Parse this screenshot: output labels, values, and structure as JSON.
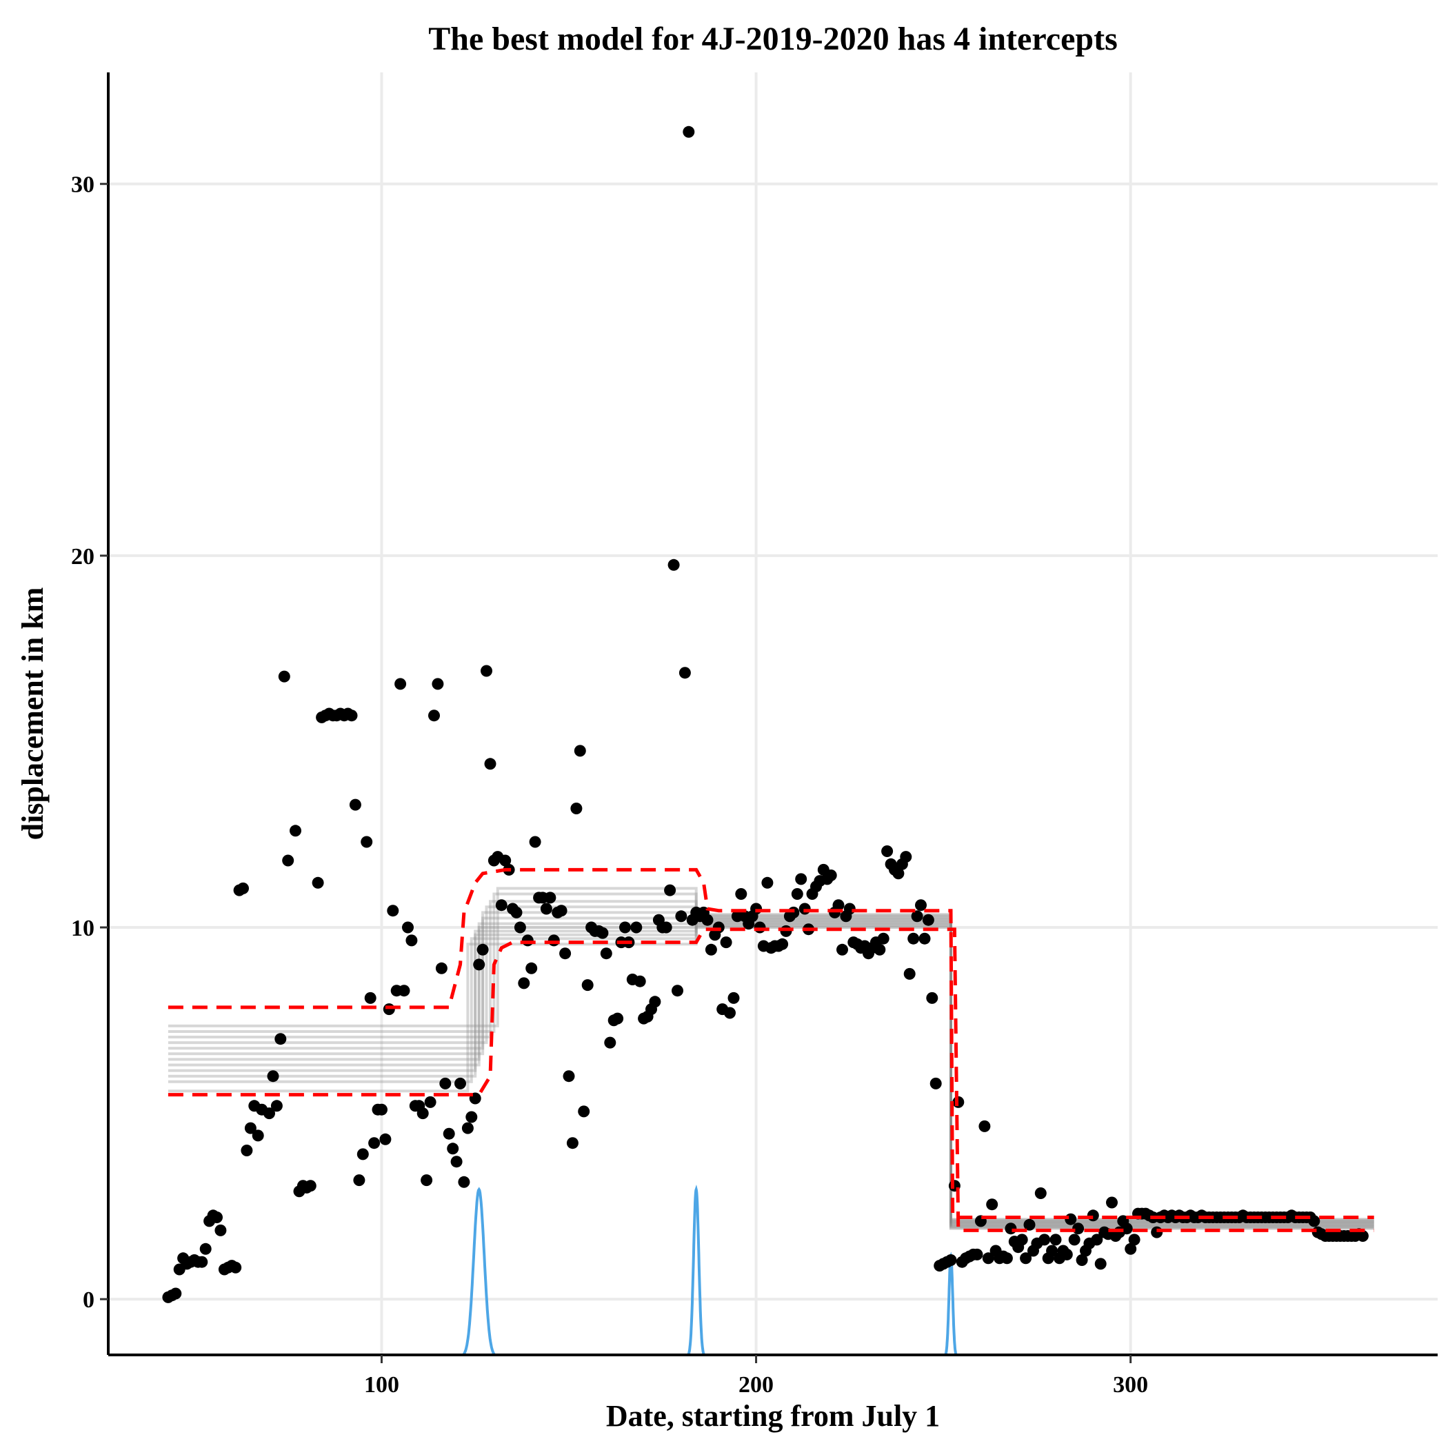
{
  "chart_data": {
    "type": "scatter",
    "title": "The best model for 4J-2019-2020 has 4 intercepts",
    "xlabel": "Date, starting from July 1",
    "ylabel": "displacement in km",
    "xlim": [
      27,
      382
    ],
    "ylim": [
      -1.5,
      33.0
    ],
    "x_ticks": [
      100,
      200,
      300
    ],
    "y_ticks": [
      0,
      10,
      20,
      30
    ],
    "x_tick_labels": [
      "100",
      "200",
      "300"
    ],
    "y_tick_labels": [
      "0",
      "10",
      "20",
      "30"
    ],
    "grid": true,
    "legend": "none",
    "colors": {
      "points": "#000000",
      "ci_band": "#ff0000",
      "posterior_lines": "#8c8c8c",
      "changepoint_density": "#4da6e6"
    },
    "points": [
      [
        43,
        0.05
      ],
      [
        44,
        0.1
      ],
      [
        45,
        0.15
      ],
      [
        46,
        0.8
      ],
      [
        47,
        1.1
      ],
      [
        48,
        0.95
      ],
      [
        49,
        1.0
      ],
      [
        50,
        1.05
      ],
      [
        51,
        1.0
      ],
      [
        52,
        1.0
      ],
      [
        53,
        1.35
      ],
      [
        54,
        2.1
      ],
      [
        55,
        2.25
      ],
      [
        56,
        2.2
      ],
      [
        57,
        1.85
      ],
      [
        58,
        0.8
      ],
      [
        59,
        0.85
      ],
      [
        60,
        0.9
      ],
      [
        61,
        0.85
      ],
      [
        62,
        11.0
      ],
      [
        63,
        11.05
      ],
      [
        64,
        4.0
      ],
      [
        65,
        4.6
      ],
      [
        66,
        5.2
      ],
      [
        67,
        4.4
      ],
      [
        68,
        5.1
      ],
      [
        70,
        5.0
      ],
      [
        71,
        6.0
      ],
      [
        72,
        5.2
      ],
      [
        73,
        7.0
      ],
      [
        74,
        16.75
      ],
      [
        75,
        11.8
      ],
      [
        77,
        12.6
      ],
      [
        78,
        2.9
      ],
      [
        79,
        3.05
      ],
      [
        80,
        3.0
      ],
      [
        81,
        3.05
      ],
      [
        83,
        11.2
      ],
      [
        84,
        15.65
      ],
      [
        85,
        15.7
      ],
      [
        86,
        15.75
      ],
      [
        87,
        15.7
      ],
      [
        88,
        15.7
      ],
      [
        89,
        15.75
      ],
      [
        90,
        15.7
      ],
      [
        91,
        15.75
      ],
      [
        92,
        15.7
      ],
      [
        93,
        13.3
      ],
      [
        94,
        3.2
      ],
      [
        95,
        3.9
      ],
      [
        96,
        12.3
      ],
      [
        97,
        8.1
      ],
      [
        98,
        4.2
      ],
      [
        99,
        5.1
      ],
      [
        100,
        5.1
      ],
      [
        101,
        4.3
      ],
      [
        102,
        7.8
      ],
      [
        103,
        10.45
      ],
      [
        104,
        8.3
      ],
      [
        105,
        16.55
      ],
      [
        106,
        8.3
      ],
      [
        107,
        10.0
      ],
      [
        108,
        9.65
      ],
      [
        109,
        5.2
      ],
      [
        110,
        5.2
      ],
      [
        111,
        5.0
      ],
      [
        112,
        3.2
      ],
      [
        113,
        5.3
      ],
      [
        114,
        15.7
      ],
      [
        115,
        16.55
      ],
      [
        116,
        8.9
      ],
      [
        117,
        5.8
      ],
      [
        118,
        4.45
      ],
      [
        119,
        4.05
      ],
      [
        120,
        3.7
      ],
      [
        121,
        5.8
      ],
      [
        122,
        3.15
      ],
      [
        123,
        4.6
      ],
      [
        124,
        4.9
      ],
      [
        125,
        5.4
      ],
      [
        126,
        9.0
      ],
      [
        127,
        9.4
      ],
      [
        128,
        16.9
      ],
      [
        129,
        14.4
      ],
      [
        130,
        11.8
      ],
      [
        131,
        11.9
      ],
      [
        132,
        10.6
      ],
      [
        133,
        11.8
      ],
      [
        134,
        11.55
      ],
      [
        135,
        10.5
      ],
      [
        136,
        10.4
      ],
      [
        137,
        10.0
      ],
      [
        138,
        8.5
      ],
      [
        139,
        9.65
      ],
      [
        140,
        8.9
      ],
      [
        141,
        12.3
      ],
      [
        142,
        10.8
      ],
      [
        143,
        10.8
      ],
      [
        144,
        10.5
      ],
      [
        145,
        10.8
      ],
      [
        146,
        9.65
      ],
      [
        147,
        10.4
      ],
      [
        148,
        10.45
      ],
      [
        149,
        9.3
      ],
      [
        150,
        6.0
      ],
      [
        151,
        4.2
      ],
      [
        152,
        13.2
      ],
      [
        153,
        14.75
      ],
      [
        154,
        5.05
      ],
      [
        155,
        8.45
      ],
      [
        156,
        10.0
      ],
      [
        157,
        9.9
      ],
      [
        158,
        9.9
      ],
      [
        159,
        9.85
      ],
      [
        160,
        9.3
      ],
      [
        161,
        6.9
      ],
      [
        162,
        7.5
      ],
      [
        163,
        7.55
      ],
      [
        164,
        9.6
      ],
      [
        165,
        10.0
      ],
      [
        166,
        9.6
      ],
      [
        167,
        8.6
      ],
      [
        168,
        10.0
      ],
      [
        169,
        8.55
      ],
      [
        170,
        7.55
      ],
      [
        171,
        7.6
      ],
      [
        172,
        7.8
      ],
      [
        173,
        8.0
      ],
      [
        174,
        10.2
      ],
      [
        175,
        10.0
      ],
      [
        176,
        10.0
      ],
      [
        177,
        11.0
      ],
      [
        178,
        19.75
      ],
      [
        179,
        8.3
      ],
      [
        180,
        10.3
      ],
      [
        181,
        16.85
      ],
      [
        182,
        31.4
      ],
      [
        183,
        10.2
      ],
      [
        184,
        10.4
      ],
      [
        185,
        10.3
      ],
      [
        186,
        10.4
      ],
      [
        187,
        10.2
      ],
      [
        188,
        9.4
      ],
      [
        189,
        9.8
      ],
      [
        190,
        10.0
      ],
      [
        191,
        7.8
      ],
      [
        192,
        9.6
      ],
      [
        193,
        7.7
      ],
      [
        194,
        8.1
      ],
      [
        195,
        10.3
      ],
      [
        196,
        10.9
      ],
      [
        197,
        10.3
      ],
      [
        198,
        10.1
      ],
      [
        199,
        10.3
      ],
      [
        200,
        10.5
      ],
      [
        201,
        10.0
      ],
      [
        202,
        9.5
      ],
      [
        203,
        11.2
      ],
      [
        204,
        9.45
      ],
      [
        205,
        9.5
      ],
      [
        206,
        9.5
      ],
      [
        207,
        9.55
      ],
      [
        208,
        9.9
      ],
      [
        209,
        10.3
      ],
      [
        210,
        10.4
      ],
      [
        211,
        10.9
      ],
      [
        212,
        11.3
      ],
      [
        213,
        10.5
      ],
      [
        214,
        9.95
      ],
      [
        215,
        10.9
      ],
      [
        216,
        11.1
      ],
      [
        217,
        11.25
      ],
      [
        218,
        11.55
      ],
      [
        219,
        11.3
      ],
      [
        220,
        11.4
      ],
      [
        221,
        10.4
      ],
      [
        222,
        10.6
      ],
      [
        223,
        9.4
      ],
      [
        224,
        10.3
      ],
      [
        225,
        10.5
      ],
      [
        226,
        9.6
      ],
      [
        227,
        9.55
      ],
      [
        228,
        9.45
      ],
      [
        229,
        9.5
      ],
      [
        230,
        9.3
      ],
      [
        231,
        9.45
      ],
      [
        232,
        9.6
      ],
      [
        233,
        9.4
      ],
      [
        234,
        9.7
      ],
      [
        235,
        12.05
      ],
      [
        236,
        11.7
      ],
      [
        237,
        11.55
      ],
      [
        238,
        11.45
      ],
      [
        239,
        11.7
      ],
      [
        240,
        11.9
      ],
      [
        241,
        8.75
      ],
      [
        242,
        9.7
      ],
      [
        243,
        10.3
      ],
      [
        244,
        10.6
      ],
      [
        245,
        9.7
      ],
      [
        246,
        10.2
      ],
      [
        247,
        8.1
      ],
      [
        248,
        5.8
      ],
      [
        249,
        0.9
      ],
      [
        250,
        0.95
      ],
      [
        251,
        1.0
      ],
      [
        252,
        1.05
      ],
      [
        253,
        3.05
      ],
      [
        254,
        5.3
      ],
      [
        255,
        1.0
      ],
      [
        256,
        1.1
      ],
      [
        257,
        1.15
      ],
      [
        258,
        1.2
      ],
      [
        259,
        1.2
      ],
      [
        260,
        2.1
      ],
      [
        261,
        4.65
      ],
      [
        262,
        1.1
      ],
      [
        263,
        2.55
      ],
      [
        264,
        1.3
      ],
      [
        265,
        1.1
      ],
      [
        266,
        1.15
      ],
      [
        267,
        1.1
      ],
      [
        268,
        1.9
      ],
      [
        269,
        1.55
      ],
      [
        270,
        1.4
      ],
      [
        271,
        1.6
      ],
      [
        272,
        1.1
      ],
      [
        273,
        2.0
      ],
      [
        274,
        1.3
      ],
      [
        275,
        1.5
      ],
      [
        276,
        2.85
      ],
      [
        277,
        1.6
      ],
      [
        278,
        1.1
      ],
      [
        279,
        1.3
      ],
      [
        280,
        1.6
      ],
      [
        281,
        1.1
      ],
      [
        282,
        1.3
      ],
      [
        283,
        1.2
      ],
      [
        284,
        2.15
      ],
      [
        285,
        1.6
      ],
      [
        286,
        1.9
      ],
      [
        287,
        1.05
      ],
      [
        288,
        1.3
      ],
      [
        289,
        1.5
      ],
      [
        290,
        2.25
      ],
      [
        291,
        1.6
      ],
      [
        292,
        0.95
      ],
      [
        293,
        1.8
      ],
      [
        294,
        1.75
      ],
      [
        295,
        2.6
      ],
      [
        296,
        1.7
      ],
      [
        297,
        1.8
      ],
      [
        298,
        2.1
      ],
      [
        299,
        1.9
      ],
      [
        300,
        1.35
      ],
      [
        301,
        1.6
      ],
      [
        302,
        2.3
      ],
      [
        303,
        2.3
      ],
      [
        304,
        2.3
      ],
      [
        305,
        2.25
      ],
      [
        306,
        2.2
      ],
      [
        307,
        1.8
      ],
      [
        308,
        2.2
      ],
      [
        309,
        2.25
      ],
      [
        310,
        2.2
      ],
      [
        311,
        2.25
      ],
      [
        312,
        2.2
      ],
      [
        313,
        2.25
      ],
      [
        314,
        2.2
      ],
      [
        315,
        2.2
      ],
      [
        316,
        2.25
      ],
      [
        317,
        2.2
      ],
      [
        318,
        2.2
      ],
      [
        319,
        2.25
      ],
      [
        320,
        2.2
      ],
      [
        321,
        2.2
      ],
      [
        322,
        2.2
      ],
      [
        323,
        2.2
      ],
      [
        324,
        2.2
      ],
      [
        325,
        2.2
      ],
      [
        326,
        2.2
      ],
      [
        327,
        2.2
      ],
      [
        328,
        2.2
      ],
      [
        329,
        2.2
      ],
      [
        330,
        2.25
      ],
      [
        331,
        2.2
      ],
      [
        332,
        2.2
      ],
      [
        333,
        2.2
      ],
      [
        334,
        2.2
      ],
      [
        335,
        2.2
      ],
      [
        336,
        2.2
      ],
      [
        337,
        2.2
      ],
      [
        338,
        2.2
      ],
      [
        339,
        2.2
      ],
      [
        340,
        2.2
      ],
      [
        341,
        2.2
      ],
      [
        342,
        2.2
      ],
      [
        343,
        2.25
      ],
      [
        344,
        2.2
      ],
      [
        345,
        2.2
      ],
      [
        346,
        2.2
      ],
      [
        347,
        2.2
      ],
      [
        348,
        2.2
      ],
      [
        349,
        2.1
      ],
      [
        350,
        1.8
      ],
      [
        351,
        1.75
      ],
      [
        352,
        1.7
      ],
      [
        353,
        1.7
      ],
      [
        354,
        1.7
      ],
      [
        355,
        1.7
      ],
      [
        356,
        1.7
      ],
      [
        357,
        1.7
      ],
      [
        358,
        1.7
      ],
      [
        359,
        1.7
      ],
      [
        360,
        1.7
      ],
      [
        361,
        1.75
      ],
      [
        362,
        1.7
      ]
    ],
    "ci_upper": [
      [
        43,
        7.85
      ],
      [
        118,
        7.85
      ],
      [
        121,
        9.0
      ],
      [
        122,
        10.4
      ],
      [
        125,
        11.2
      ],
      [
        127,
        11.45
      ],
      [
        133,
        11.55
      ],
      [
        184,
        11.55
      ],
      [
        186,
        11.2
      ],
      [
        187,
        10.5
      ],
      [
        190,
        10.45
      ],
      [
        252,
        10.45
      ],
      [
        252.5,
        2.2
      ],
      [
        365,
        2.2
      ]
    ],
    "ci_lower": [
      [
        43,
        5.5
      ],
      [
        126,
        5.5
      ],
      [
        129,
        6.0
      ],
      [
        130,
        9.0
      ],
      [
        132,
        9.45
      ],
      [
        135,
        9.6
      ],
      [
        184,
        9.6
      ],
      [
        186,
        9.95
      ],
      [
        187,
        9.95
      ],
      [
        253,
        9.95
      ],
      [
        254,
        1.85
      ],
      [
        365,
        1.85
      ]
    ],
    "posterior_steps": [
      {
        "level1": 5.6,
        "cp1": 123,
        "level2": 9.55
      },
      {
        "level1": 5.85,
        "cp1": 124,
        "level2": 9.7
      },
      {
        "level1": 6.0,
        "cp1": 125,
        "level2": 9.8
      },
      {
        "level1": 6.15,
        "cp1": 125,
        "level2": 9.9
      },
      {
        "level1": 6.3,
        "cp1": 126,
        "level2": 10.0
      },
      {
        "level1": 6.45,
        "cp1": 126,
        "level2": 10.1
      },
      {
        "level1": 6.6,
        "cp1": 127,
        "level2": 10.25
      },
      {
        "level1": 6.75,
        "cp1": 127,
        "level2": 10.4
      },
      {
        "level1": 6.9,
        "cp1": 128,
        "level2": 10.55
      },
      {
        "level1": 7.05,
        "cp1": 129,
        "level2": 10.7
      },
      {
        "level1": 7.2,
        "cp1": 130,
        "level2": 10.9
      },
      {
        "level1": 7.35,
        "cp1": 131,
        "level2": 11.05
      }
    ],
    "posterior_mid": {
      "level3_low": 10.0,
      "level3_high": 10.35,
      "cp2": 184,
      "cp3": 252,
      "level4_low": 1.9,
      "level4_high": 2.15
    },
    "changepoint_density": [
      {
        "center": 126,
        "sd": 1.4,
        "peak": 4.5
      },
      {
        "center": 184,
        "sd": 0.7,
        "peak": 4.5
      },
      {
        "center": 252,
        "sd": 0.5,
        "peak": 2.7
      }
    ]
  }
}
